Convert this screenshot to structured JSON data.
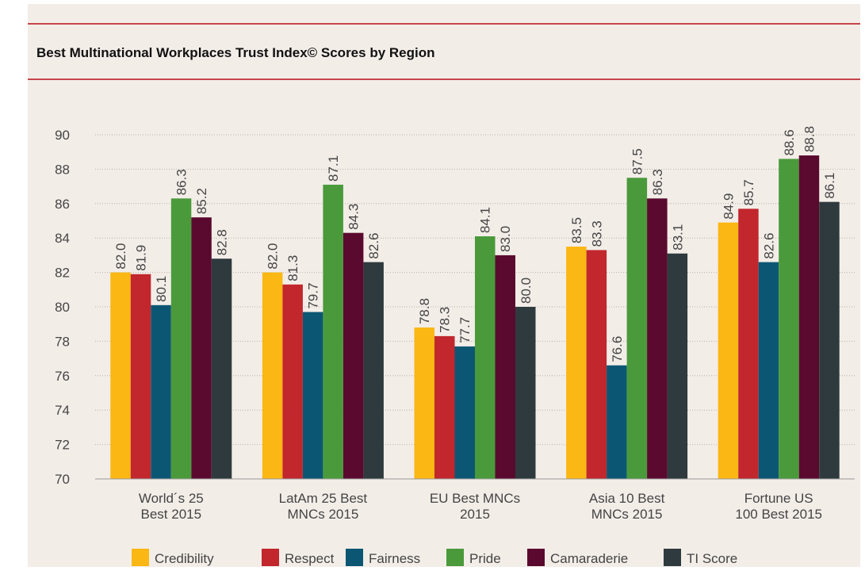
{
  "chart_data": {
    "type": "bar",
    "title": "Best Multinational Workplaces Trust Index© Scores by Region",
    "categories": [
      [
        "World´s 25",
        "Best 2015"
      ],
      [
        "LatAm 25 Best",
        "MNCs 2015"
      ],
      [
        "EU Best MNCs",
        "2015"
      ],
      [
        "Asia 10 Best",
        "MNCs 2015"
      ],
      [
        "Fortune US",
        "100 Best 2015"
      ]
    ],
    "series": [
      {
        "name": "Credibility",
        "color": "#fbb713",
        "values": [
          82.0,
          82.0,
          78.8,
          83.5,
          84.9
        ],
        "value_labels": [
          "82.0",
          "82.0",
          "78.8",
          "83.5",
          "84.9"
        ]
      },
      {
        "name": "Respect",
        "color": "#c1272d",
        "values": [
          81.9,
          81.3,
          78.3,
          83.3,
          85.7
        ],
        "value_labels": [
          "81.9",
          "81.3",
          "78.3",
          "83.3",
          "85.7"
        ]
      },
      {
        "name": "Fairness",
        "color": "#0b5773",
        "values": [
          80.1,
          79.7,
          77.7,
          76.6,
          82.6
        ],
        "value_labels": [
          "80.1",
          "79.7",
          "77.7",
          "76.6",
          "82.6"
        ]
      },
      {
        "name": "Pride",
        "color": "#4a9a3b",
        "values": [
          86.3,
          87.1,
          84.1,
          87.5,
          88.6
        ],
        "value_labels": [
          "86.3",
          "87.1",
          "84.1",
          "87.5",
          "88.6"
        ]
      },
      {
        "name": "Camaraderie",
        "color": "#5a0a2e",
        "values": [
          85.2,
          84.3,
          83.0,
          86.3,
          88.8
        ],
        "value_labels": [
          "85.2",
          "84.3",
          "83.0",
          "86.3",
          "88.8"
        ]
      },
      {
        "name": "TI Score",
        "color": "#2f3a3e",
        "values": [
          82.8,
          82.6,
          80.0,
          83.1,
          86.1
        ],
        "value_labels": [
          "82.8",
          "82.6",
          "80.0",
          "83.1",
          "86.1"
        ]
      }
    ],
    "ylim": [
      70,
      90
    ],
    "yticks": [
      70,
      72,
      74,
      76,
      78,
      80,
      82,
      84,
      86,
      88,
      90
    ],
    "grid": true,
    "legend": "bottom"
  }
}
